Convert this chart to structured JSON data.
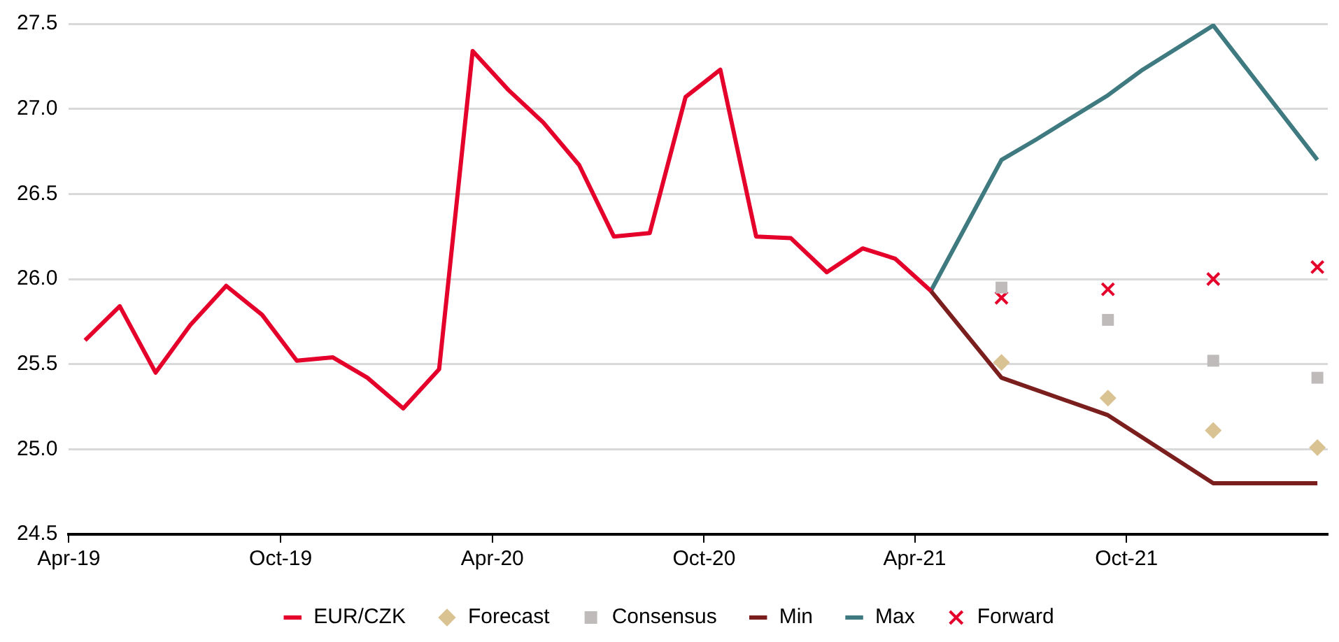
{
  "chart_data": {
    "type": "line",
    "xlim": [
      "2019-04",
      "2022-03-24"
    ],
    "xticks": [
      {
        "value": "2019-04",
        "label": "Apr-19"
      },
      {
        "value": "2019-10",
        "label": "Oct-19"
      },
      {
        "value": "2020-04",
        "label": "Apr-20"
      },
      {
        "value": "2020-10",
        "label": "Oct-20"
      },
      {
        "value": "2021-04",
        "label": "Apr-21"
      },
      {
        "value": "2021-10",
        "label": "Oct-21"
      }
    ],
    "ylim": [
      24.5,
      27.5
    ],
    "yticks": [
      {
        "value": 24.5,
        "label": "24.5"
      },
      {
        "value": 25,
        "label": "25.0"
      },
      {
        "value": 25.5,
        "label": "25.5"
      },
      {
        "value": 26,
        "label": "26.0"
      },
      {
        "value": 26.5,
        "label": "26.5"
      },
      {
        "value": 27,
        "label": "27.0"
      },
      {
        "value": 27.5,
        "label": "27.5"
      }
    ],
    "grid": "y",
    "legend": "bottom",
    "series": [
      {
        "name": "EUR/CZK",
        "color": "#e4002b",
        "x": [
          "2019-04-15",
          "2019-05-15",
          "2019-06-15",
          "2019-07-15",
          "2019-08-15",
          "2019-09-15",
          "2019-10-15",
          "2019-11-15",
          "2019-12-15",
          "2020-01-15",
          "2020-02-15",
          "2020-03-15",
          "2020-04-15",
          "2020-05-15",
          "2020-06-15",
          "2020-07-15",
          "2020-08-15",
          "2020-09-15",
          "2020-10-15",
          "2020-11-15",
          "2020-12-15",
          "2021-01-15",
          "2021-02-15",
          "2021-03-15",
          "2021-04-15"
        ],
        "values": [
          25.64,
          25.84,
          25.45,
          25.73,
          25.96,
          25.79,
          25.52,
          25.54,
          25.42,
          25.24,
          25.47,
          27.34,
          27.11,
          26.92,
          26.67,
          26.25,
          26.27,
          27.07,
          27.23,
          26.25,
          26.24,
          26.04,
          26.18,
          26.12,
          25.93
        ]
      },
      {
        "name": "Forecast",
        "type": "scatter",
        "marker": "diamond",
        "color": "#d9c392",
        "x": [
          "2021-06-15",
          "2021-09-15",
          "2021-12-15",
          "2022-03-15"
        ],
        "values": [
          25.51,
          25.3,
          25.11,
          25.01
        ]
      },
      {
        "name": "Consensus",
        "type": "scatter",
        "marker": "square",
        "color": "#bfbbbb",
        "x": [
          "2021-06-15",
          "2021-09-15",
          "2021-12-15",
          "2022-03-15"
        ],
        "values": [
          25.95,
          25.76,
          25.52,
          25.42
        ]
      },
      {
        "name": "Min",
        "color": "#7b1e1e",
        "x": [
          "2021-04-15",
          "2021-06-15",
          "2021-09-15",
          "2021-12-15",
          "2022-03-15"
        ],
        "values": [
          25.93,
          25.42,
          25.2,
          24.8,
          24.8
        ]
      },
      {
        "name": "Max",
        "color": "#3e7a80",
        "x": [
          "2021-04-15",
          "2021-06-15",
          "2021-07-15",
          "2021-09-15",
          "2021-10-15",
          "2021-12-15",
          "2022-03-15"
        ],
        "values": [
          25.93,
          26.7,
          26.82,
          27.08,
          27.23,
          27.49,
          26.7
        ]
      },
      {
        "name": "Forward",
        "type": "scatter",
        "marker": "cross",
        "color": "#e4002b",
        "x": [
          "2021-06-15",
          "2021-09-15",
          "2021-12-15",
          "2022-03-15"
        ],
        "values": [
          25.89,
          25.94,
          26.0,
          26.07
        ]
      }
    ]
  }
}
